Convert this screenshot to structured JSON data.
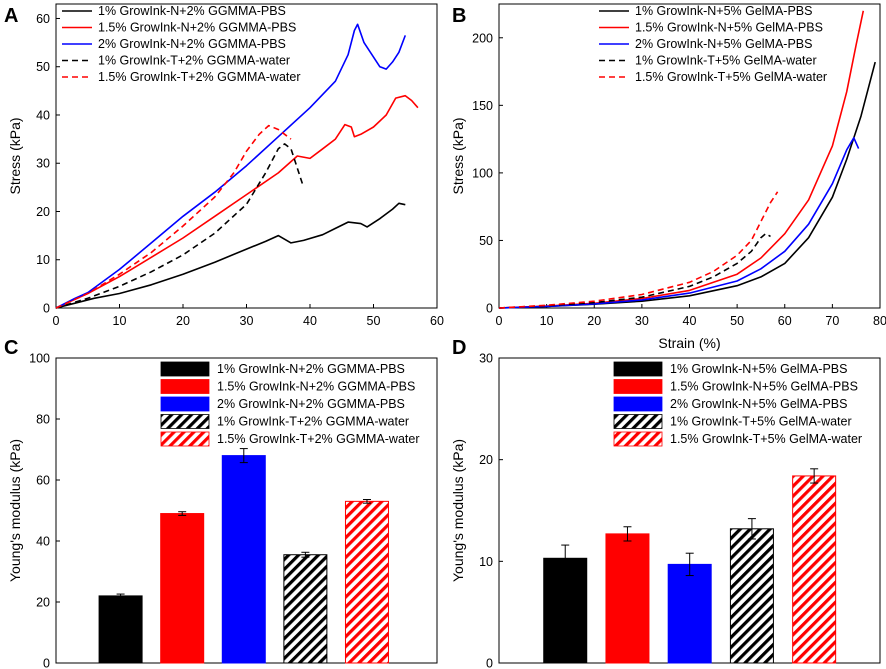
{
  "chart_data": [
    {
      "panel": "A",
      "type": "line",
      "xlabel": "",
      "ylabel": "Stress (kPa)",
      "xlim": [
        0,
        60
      ],
      "ylim": [
        0,
        63
      ],
      "xticks": [
        0,
        10,
        20,
        30,
        40,
        50,
        60
      ],
      "yticks": [
        0,
        10,
        20,
        30,
        40,
        50,
        60
      ],
      "legend": "top-left",
      "series": [
        {
          "name": "1% GrowInk-N+2% GGMMA-PBS",
          "color": "#000000",
          "dashed": false,
          "points": [
            [
              0,
              0
            ],
            [
              3,
              1
            ],
            [
              6,
              2
            ],
            [
              10,
              3
            ],
            [
              15,
              4.8
            ],
            [
              20,
              7
            ],
            [
              25,
              9.5
            ],
            [
              30,
              12.2
            ],
            [
              33,
              13.8
            ],
            [
              35,
              15
            ],
            [
              37,
              13.5
            ],
            [
              39,
              14
            ],
            [
              42,
              15.2
            ],
            [
              44,
              16.5
            ],
            [
              46,
              17.8
            ],
            [
              48,
              17.5
            ],
            [
              49,
              16.8
            ],
            [
              51,
              18.5
            ],
            [
              53,
              20.5
            ],
            [
              54,
              21.7
            ],
            [
              55,
              21.4
            ]
          ]
        },
        {
          "name": "1.5% GrowInk-N+2% GGMMA-PBS",
          "color": "#ff0000",
          "dashed": false,
          "points": [
            [
              0,
              0
            ],
            [
              3,
              1.8
            ],
            [
              5,
              3
            ],
            [
              10,
              6.5
            ],
            [
              15,
              10.5
            ],
            [
              20,
              14.5
            ],
            [
              25,
              19
            ],
            [
              30,
              23.5
            ],
            [
              35,
              28
            ],
            [
              38,
              31.5
            ],
            [
              40,
              31
            ],
            [
              42,
              33
            ],
            [
              44,
              35
            ],
            [
              45.5,
              38
            ],
            [
              46.5,
              37.5
            ],
            [
              47,
              35.5
            ],
            [
              48,
              36
            ],
            [
              50,
              37.5
            ],
            [
              52,
              40
            ],
            [
              53.5,
              43.5
            ],
            [
              55,
              44
            ],
            [
              56,
              43
            ],
            [
              57,
              41.5
            ]
          ]
        },
        {
          "name": "2% GrowInk-N+2% GGMMA-PBS",
          "color": "#0000ff",
          "dashed": false,
          "points": [
            [
              0,
              0
            ],
            [
              3,
              2
            ],
            [
              5,
              3.2
            ],
            [
              10,
              8
            ],
            [
              15,
              13.5
            ],
            [
              20,
              19
            ],
            [
              25,
              24
            ],
            [
              30,
              29.5
            ],
            [
              35,
              35.5
            ],
            [
              40,
              41.5
            ],
            [
              44,
              47
            ],
            [
              46,
              52.5
            ],
            [
              47,
              57.5
            ],
            [
              47.5,
              58.8
            ],
            [
              48.5,
              55
            ],
            [
              50,
              52
            ],
            [
              51,
              50
            ],
            [
              52,
              49.5
            ],
            [
              53,
              51
            ],
            [
              54,
              53
            ],
            [
              55,
              56.5
            ]
          ]
        },
        {
          "name": "1% GrowInk-T+2% GGMMA-water",
          "color": "#000000",
          "dashed": true,
          "points": [
            [
              0,
              0
            ],
            [
              5,
              2
            ],
            [
              10,
              4.5
            ],
            [
              15,
              7.5
            ],
            [
              20,
              11
            ],
            [
              25,
              15.5
            ],
            [
              30,
              21.5
            ],
            [
              33,
              28
            ],
            [
              35,
              33
            ],
            [
              36,
              34
            ],
            [
              37,
              33
            ],
            [
              38,
              29
            ],
            [
              39,
              25
            ]
          ]
        },
        {
          "name": "1.5% GrowInk-T+2% GGMMA-water",
          "color": "#ff0000",
          "dashed": true,
          "points": [
            [
              0,
              0
            ],
            [
              5,
              3
            ],
            [
              10,
              7
            ],
            [
              15,
              11.5
            ],
            [
              20,
              17
            ],
            [
              25,
              23
            ],
            [
              28,
              28
            ],
            [
              30,
              32.5
            ],
            [
              32,
              36
            ],
            [
              33.5,
              37.8
            ],
            [
              35,
              37
            ],
            [
              37,
              35
            ]
          ]
        }
      ]
    },
    {
      "panel": "B",
      "type": "line",
      "xlabel": "Strain (%)",
      "ylabel": "Stress (kPa)",
      "xlim": [
        0,
        80
      ],
      "ylim": [
        0,
        225
      ],
      "xticks": [
        0,
        10,
        20,
        30,
        40,
        50,
        60,
        70,
        80
      ],
      "yticks": [
        0,
        50,
        100,
        150,
        200
      ],
      "legend": "top-left",
      "series": [
        {
          "name": "1% GrowInk-N+5% GelMA-PBS",
          "color": "#000000",
          "dashed": false,
          "points": [
            [
              0,
              0
            ],
            [
              10,
              1.2
            ],
            [
              20,
              2.8
            ],
            [
              30,
              5
            ],
            [
              40,
              9
            ],
            [
              50,
              16.5
            ],
            [
              55,
              23
            ],
            [
              60,
              33
            ],
            [
              65,
              52
            ],
            [
              70,
              82
            ],
            [
              73,
              110
            ],
            [
              76,
              142
            ],
            [
              79,
              182
            ]
          ]
        },
        {
          "name": "1.5% GrowInk-N+5% GelMA-PBS",
          "color": "#ff0000",
          "dashed": false,
          "points": [
            [
              0,
              0
            ],
            [
              10,
              1.5
            ],
            [
              20,
              3.5
            ],
            [
              30,
              7
            ],
            [
              40,
              13
            ],
            [
              50,
              25
            ],
            [
              55,
              37
            ],
            [
              60,
              55
            ],
            [
              65,
              80
            ],
            [
              70,
              120
            ],
            [
              73,
              160
            ],
            [
              75,
              195
            ],
            [
              76.5,
              220
            ]
          ]
        },
        {
          "name": "2% GrowInk-N+5% GelMA-PBS",
          "color": "#0000ff",
          "dashed": false,
          "points": [
            [
              0,
              0
            ],
            [
              10,
              1.2
            ],
            [
              20,
              3
            ],
            [
              30,
              6
            ],
            [
              40,
              11
            ],
            [
              50,
              20
            ],
            [
              55,
              29
            ],
            [
              60,
              42
            ],
            [
              65,
              62
            ],
            [
              70,
              92
            ],
            [
              73,
              117
            ],
            [
              74.5,
              126
            ],
            [
              75.5,
              118
            ]
          ]
        },
        {
          "name": "1% GrowInk-T+5% GelMA-water",
          "color": "#000000",
          "dashed": true,
          "points": [
            [
              0,
              0
            ],
            [
              10,
              1.8
            ],
            [
              20,
              4
            ],
            [
              30,
              8
            ],
            [
              40,
              16
            ],
            [
              45,
              23
            ],
            [
              50,
              33
            ],
            [
              53,
              42
            ],
            [
              55,
              52
            ],
            [
              56,
              55
            ],
            [
              57,
              53
            ]
          ]
        },
        {
          "name": "1.5% GrowInk-T+5% GelMA-water",
          "color": "#ff0000",
          "dashed": true,
          "points": [
            [
              0,
              0
            ],
            [
              10,
              2
            ],
            [
              20,
              5
            ],
            [
              30,
              10
            ],
            [
              40,
              19
            ],
            [
              45,
              27
            ],
            [
              50,
              39
            ],
            [
              53,
              50
            ],
            [
              55,
              64
            ],
            [
              57,
              78
            ],
            [
              58.5,
              86
            ]
          ]
        }
      ]
    },
    {
      "panel": "C",
      "type": "bar",
      "xlabel": "",
      "ylabel": "Young's modulus (kPa)",
      "ylim": [
        0,
        100
      ],
      "yticks": [
        0,
        20,
        40,
        60,
        80,
        100
      ],
      "legend": "top-right",
      "categories": [
        "1% GrowInk-N+2% GGMMA-PBS",
        "1.5% GrowInk-N+2% GGMMA-PBS",
        "2% GrowInk-N+2% GGMMA-PBS",
        "1% GrowInk-T+2% GGMMA-water",
        "1.5% GrowInk-T+2% GGMMA-water"
      ],
      "values": [
        22,
        49,
        68,
        35.5,
        53
      ],
      "errors": [
        0.6,
        0.6,
        2.3,
        0.8,
        0.6
      ],
      "colors": [
        "#000000",
        "#ff0000",
        "#0000ff",
        "#000000",
        "#ff0000"
      ],
      "hatched": [
        false,
        false,
        false,
        true,
        true
      ]
    },
    {
      "panel": "D",
      "type": "bar",
      "xlabel": "",
      "ylabel": "Young's modulus (kPa)",
      "ylim": [
        0,
        30
      ],
      "yticks": [
        0,
        10,
        20,
        30
      ],
      "legend": "top-right",
      "categories": [
        "1% GrowInk-N+5% GelMA-PBS",
        "1.5% GrowInk-N+5% GelMA-PBS",
        "2% GrowInk-N+5% GelMA-PBS",
        "1% GrowInk-T+5% GelMA-water",
        "1.5% GrowInk-T+5% GelMA-water"
      ],
      "values": [
        10.3,
        12.7,
        9.7,
        13.2,
        18.4
      ],
      "errors": [
        1.3,
        0.7,
        1.1,
        1.0,
        0.7
      ],
      "colors": [
        "#000000",
        "#ff0000",
        "#0000ff",
        "#000000",
        "#ff0000"
      ],
      "hatched": [
        false,
        false,
        false,
        true,
        true
      ]
    }
  ]
}
